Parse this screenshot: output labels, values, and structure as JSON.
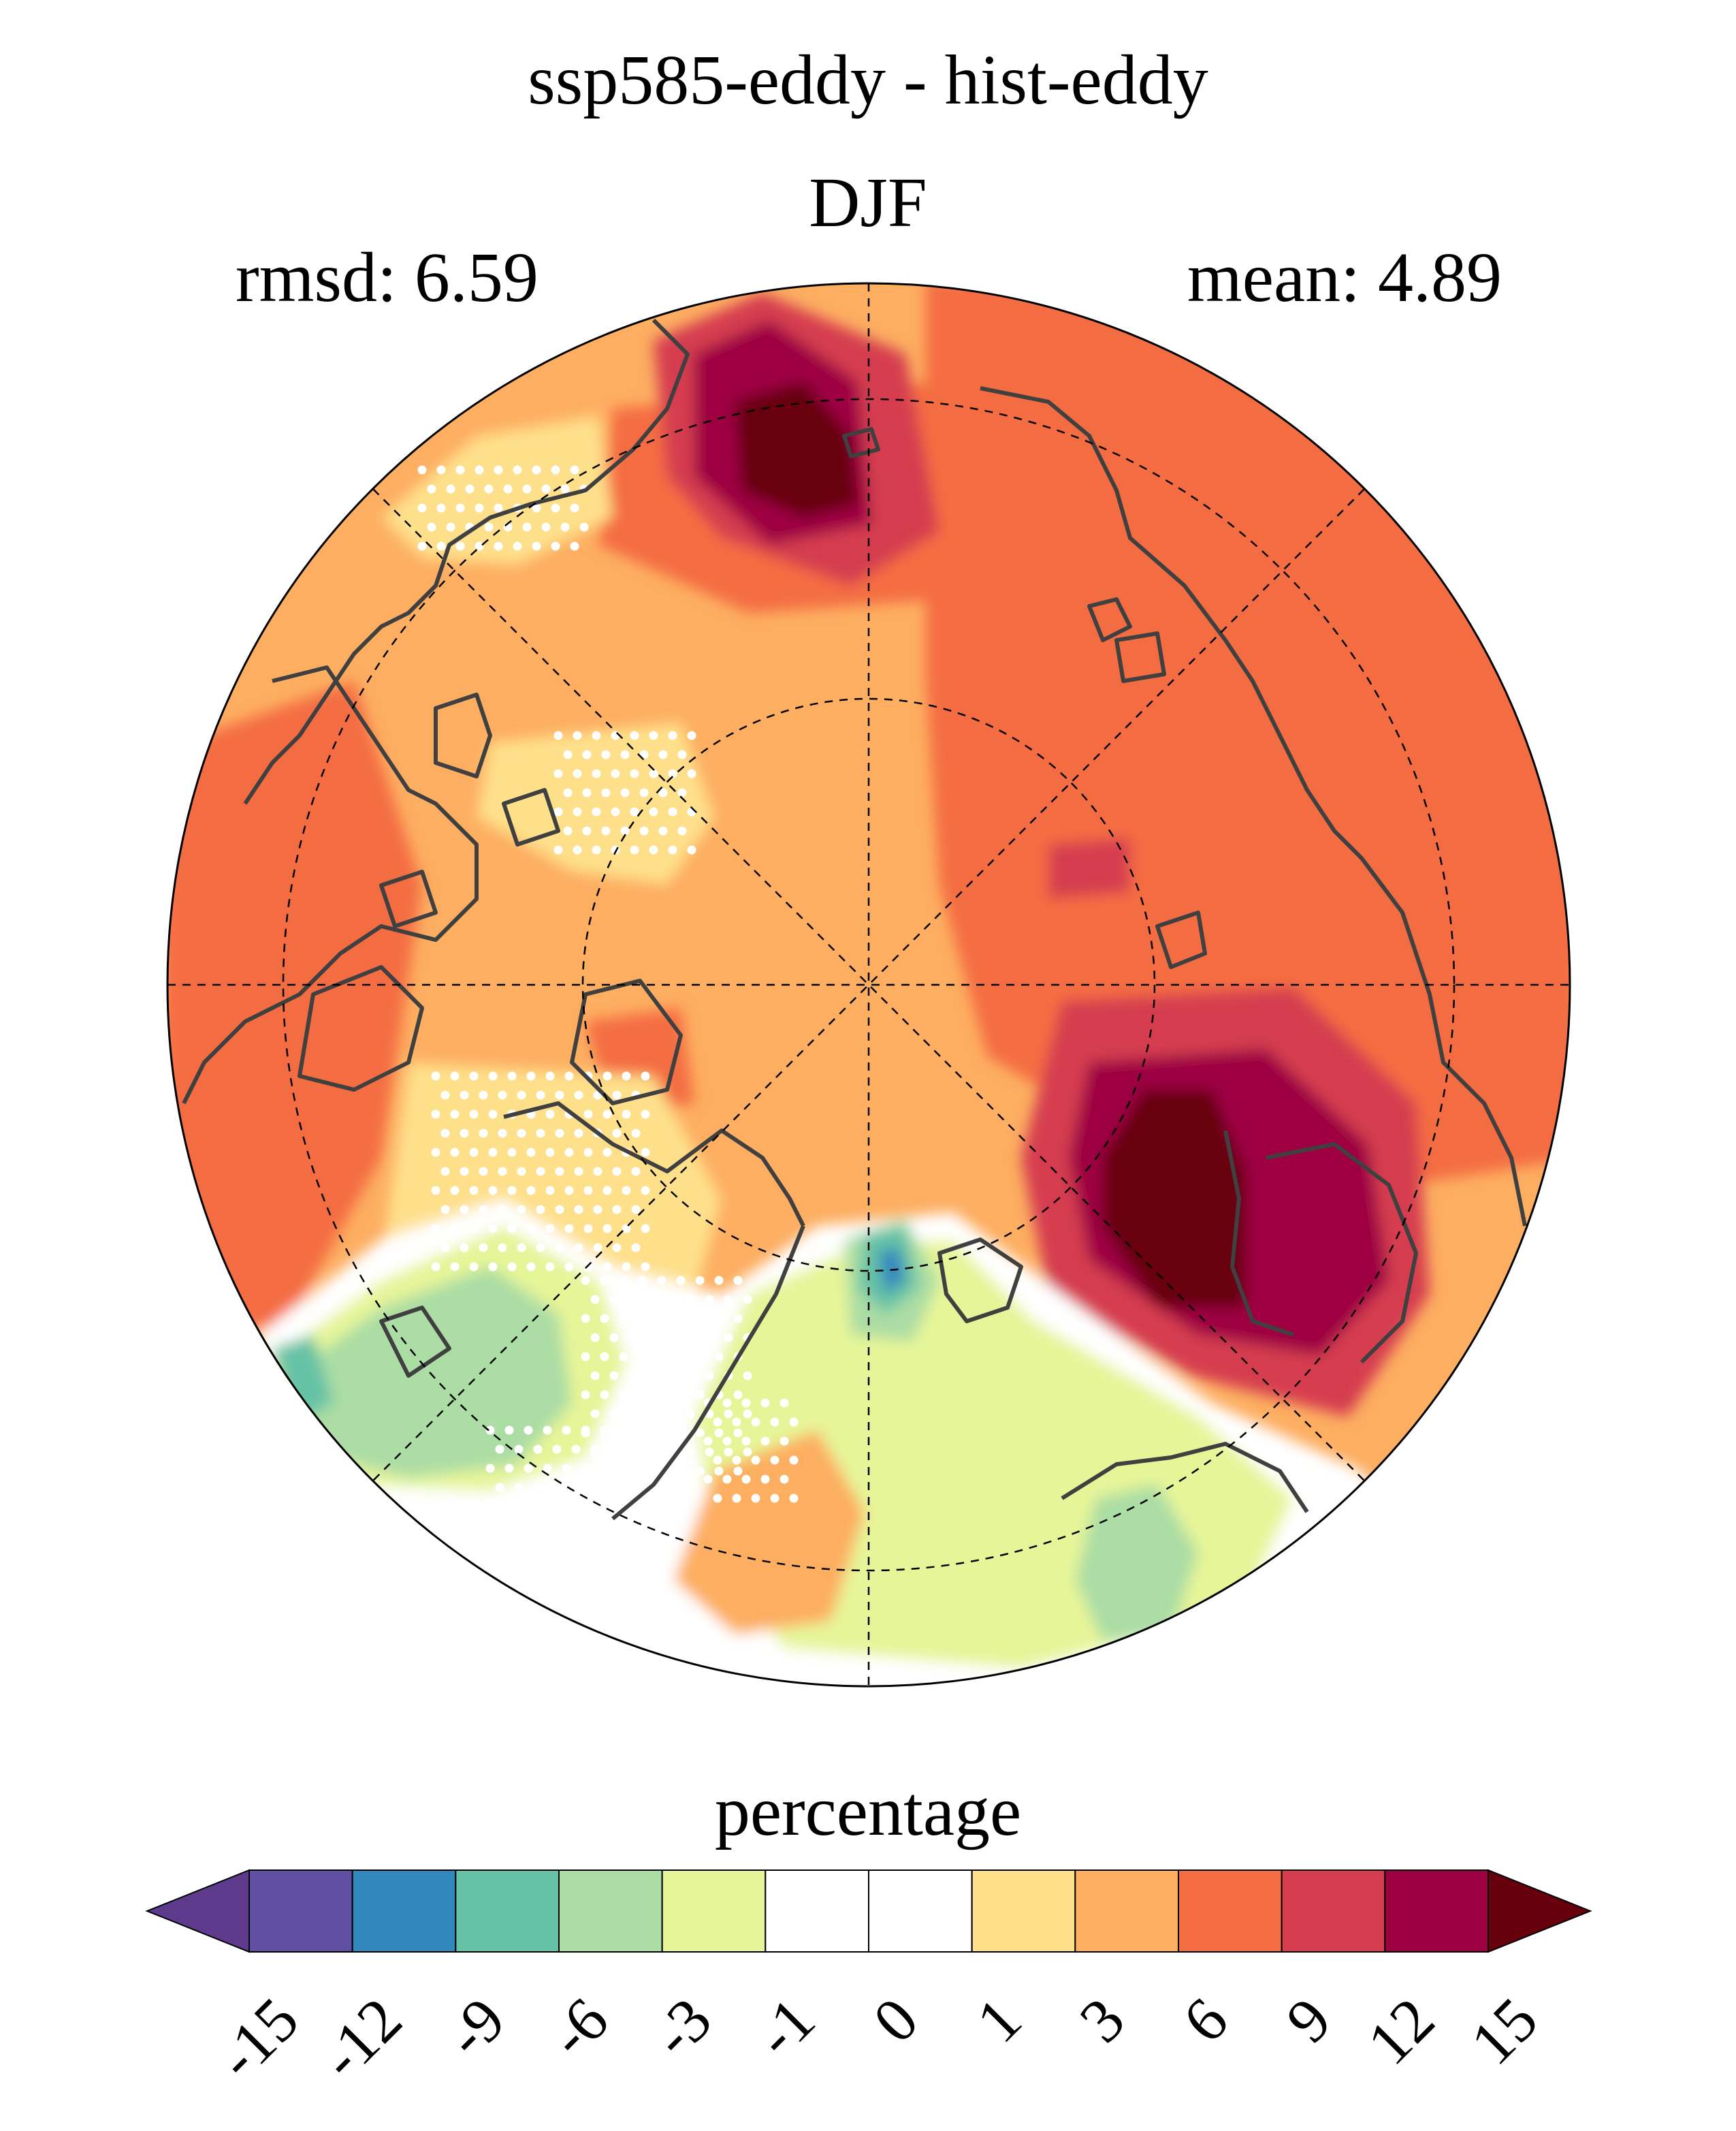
{
  "chart_data": {
    "type": "heatmap",
    "projection": "north-polar-stereographic",
    "title": "ssp585-eddy - hist-eddy",
    "subtitle": "DJF",
    "stats": {
      "rmsd_label": "rmsd: 6.59",
      "mean_label": "mean: 4.89",
      "rmsd": 6.59,
      "mean": 4.89
    },
    "colorbar": {
      "label": "percentage",
      "levels": [
        "-15",
        "-12",
        "-9",
        "-6",
        "-3",
        "-1",
        "0",
        "1",
        "3",
        "6",
        "9",
        "12",
        "15"
      ],
      "colors": [
        "#5e4fa2",
        "#3288bd",
        "#66c2a5",
        "#abdda4",
        "#e6f598",
        "#ffffff",
        "#ffffff",
        "#fee08b",
        "#fdae61",
        "#f46d43",
        "#d53e4f",
        "#9e0142"
      ],
      "under_color": "#5d3a8c",
      "over_color": "#67000d",
      "extend": "both"
    },
    "stippling": "white dots mark grid cells without significant change",
    "grid_lines": true
  }
}
